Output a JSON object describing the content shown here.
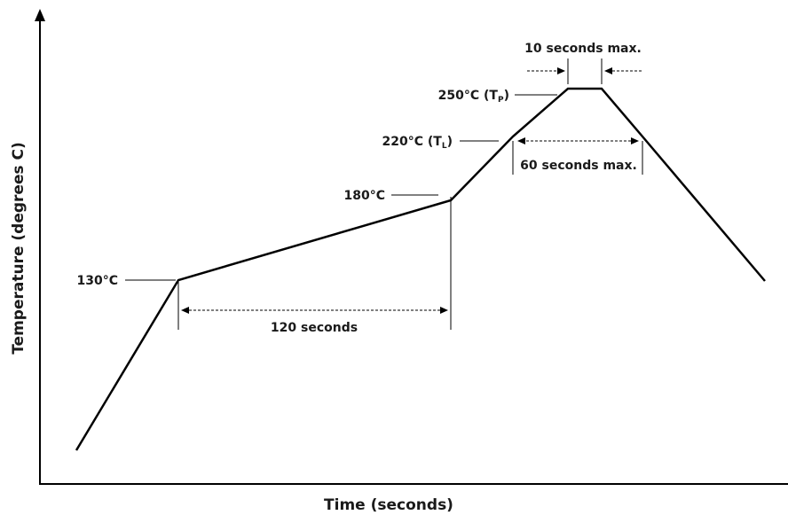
{
  "chart_data": {
    "type": "line",
    "title": "",
    "xlabel": "Time (seconds)",
    "ylabel": "Temperature (degrees C)",
    "grid": false,
    "legend": "none",
    "series": [
      {
        "points": [
          {
            "y": null
          },
          {
            "y": 130
          },
          {
            "y": 180
          },
          {
            "y": 220
          },
          {
            "y": 250
          },
          {
            "y": 250
          },
          {
            "y": 220
          },
          {
            "y": null
          }
        ]
      }
    ],
    "temperature_labels": {
      "t130": "130°C",
      "t180": "180°C",
      "t220": "220°C (T",
      "t220_sub": "L",
      "t220_close": ")",
      "t250": "250°C (T",
      "t250_sub": "P",
      "t250_close": ")"
    },
    "annotations": {
      "soak": "120 seconds",
      "above_liquidus": "60 seconds max.",
      "peak": "10 seconds max."
    }
  }
}
